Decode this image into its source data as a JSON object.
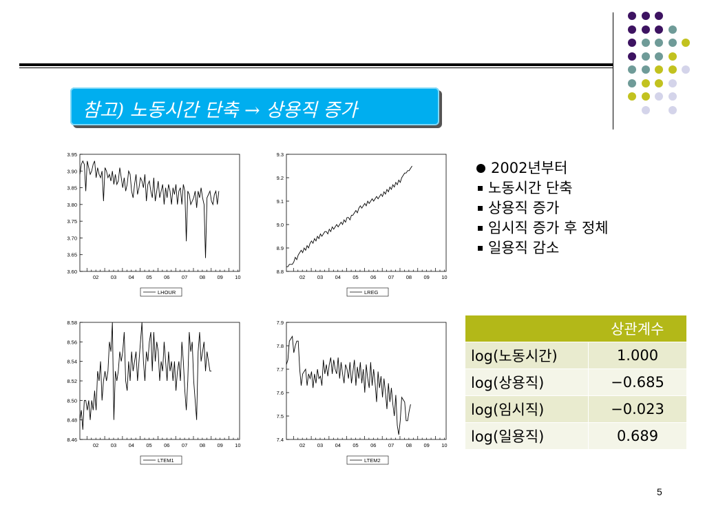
{
  "slide": {
    "title": "참고) 노동시간 단축 → 상용직 증가",
    "page_number": "5",
    "decoration_colors": {
      "purple": "#3d1361",
      "teal": "#6f9b98",
      "yellow": "#c2c21f",
      "lavender": "#d4d4ea"
    }
  },
  "bullets": [
    {
      "marker": "circle",
      "text": "2002년부터"
    },
    {
      "marker": "square",
      "text": "노동시간 단축"
    },
    {
      "marker": "square",
      "text": "상용직 증가"
    },
    {
      "marker": "square",
      "text": "임시직 증가 후 정체"
    },
    {
      "marker": "square",
      "text": "일용직 감소"
    }
  ],
  "table": {
    "header": [
      "",
      "상관계수"
    ],
    "rows": [
      [
        "log(노동시간)",
        "1.000"
      ],
      [
        "log(상용직)",
        "−0.685"
      ],
      [
        "log(임시직)",
        "−0.023"
      ],
      [
        "log(일용직)",
        "0.689"
      ]
    ]
  },
  "chart_data": [
    {
      "type": "line",
      "legend": "LHOUR",
      "x_ticks": [
        "02",
        "03",
        "04",
        "05",
        "06",
        "07",
        "08",
        "09",
        "10"
      ],
      "xlim": [
        2001.6,
        2010.6
      ],
      "ylim": [
        3.6,
        3.95
      ],
      "y_ticks": [
        "3.95",
        "3.90",
        "3.85",
        "3.80",
        "3.75",
        "3.70",
        "3.65",
        "3.60"
      ],
      "x_start": 2001.6,
      "x_step": 0.0833,
      "values": [
        3.89,
        3.92,
        3.93,
        3.92,
        3.84,
        3.93,
        3.91,
        3.89,
        3.9,
        3.92,
        3.93,
        3.88,
        3.91,
        3.89,
        3.88,
        3.9,
        3.81,
        3.91,
        3.9,
        3.88,
        3.89,
        3.87,
        3.9,
        3.86,
        3.89,
        3.86,
        3.87,
        3.91,
        3.88,
        3.85,
        3.88,
        3.84,
        3.86,
        3.9,
        3.89,
        3.84,
        3.82,
        3.86,
        3.89,
        3.83,
        3.85,
        3.88,
        3.87,
        3.85,
        3.89,
        3.81,
        3.86,
        3.87,
        3.84,
        3.82,
        3.88,
        3.81,
        3.84,
        3.87,
        3.82,
        3.84,
        3.86,
        3.8,
        3.85,
        3.82,
        3.86,
        3.84,
        3.8,
        3.85,
        3.83,
        3.86,
        3.8,
        3.84,
        3.85,
        3.8,
        3.86,
        3.84,
        3.69,
        3.84,
        3.83,
        3.8,
        3.81,
        3.82,
        3.84,
        3.79,
        3.84,
        3.82,
        3.85,
        3.82,
        3.8,
        3.64,
        3.82,
        3.83,
        3.84,
        3.81,
        3.8,
        3.83,
        3.84,
        3.8,
        3.84
      ]
    },
    {
      "type": "line",
      "legend": "LREG",
      "x_ticks": [
        "02",
        "03",
        "04",
        "05",
        "06",
        "07",
        "08",
        "09",
        "10"
      ],
      "xlim": [
        2001.6,
        2010.6
      ],
      "ylim": [
        8.8,
        9.3
      ],
      "y_ticks": [
        "9.3",
        "9.2",
        "9.1",
        "9.0",
        "8.9",
        "8.8"
      ],
      "x_start": 2001.6,
      "x_step": 0.0833,
      "values": [
        8.82,
        8.82,
        8.83,
        8.83,
        8.83,
        8.84,
        8.86,
        8.85,
        8.87,
        8.88,
        8.89,
        8.88,
        8.9,
        8.89,
        8.91,
        8.9,
        8.92,
        8.93,
        8.92,
        8.94,
        8.93,
        8.95,
        8.94,
        8.96,
        8.95,
        8.96,
        8.97,
        8.97,
        8.96,
        8.98,
        8.97,
        8.99,
        8.98,
        8.99,
        9.0,
        8.99,
        9.0,
        9.01,
        9.0,
        9.02,
        9.01,
        9.03,
        9.03,
        9.02,
        9.04,
        9.04,
        9.05,
        9.06,
        9.05,
        9.07,
        9.08,
        9.07,
        9.08,
        9.09,
        9.08,
        9.1,
        9.09,
        9.1,
        9.11,
        9.1,
        9.11,
        9.12,
        9.11,
        9.12,
        9.13,
        9.12,
        9.14,
        9.13,
        9.15,
        9.14,
        9.16,
        9.15,
        9.17,
        9.16,
        9.18,
        9.17,
        9.19,
        9.18,
        9.2,
        9.21,
        9.22,
        9.22,
        9.23,
        9.23,
        9.24,
        9.25
      ]
    },
    {
      "type": "line",
      "legend": "LTEM1",
      "x_ticks": [
        "02",
        "03",
        "04",
        "05",
        "06",
        "07",
        "08",
        "09",
        "10"
      ],
      "xlim": [
        2001.6,
        2010.6
      ],
      "ylim": [
        8.46,
        8.58
      ],
      "y_ticks": [
        "8.58",
        "8.56",
        "8.54",
        "8.52",
        "8.50",
        "8.48",
        "8.46"
      ],
      "x_start": 2001.6,
      "x_step": 0.0833,
      "values": [
        8.48,
        8.49,
        8.47,
        8.5,
        8.5,
        8.49,
        8.5,
        8.48,
        8.5,
        8.49,
        8.51,
        8.49,
        8.53,
        8.52,
        8.54,
        8.5,
        8.52,
        8.53,
        8.52,
        8.53,
        8.56,
        8.55,
        8.58,
        8.48,
        8.53,
        8.52,
        8.53,
        8.55,
        8.54,
        8.55,
        8.57,
        8.52,
        8.51,
        8.54,
        8.52,
        8.55,
        8.53,
        8.54,
        8.55,
        8.52,
        8.54,
        8.56,
        8.58,
        8.54,
        8.52,
        8.55,
        8.54,
        8.56,
        8.57,
        8.53,
        8.57,
        8.54,
        8.56,
        8.55,
        8.52,
        8.54,
        8.53,
        8.56,
        8.54,
        8.52,
        8.55,
        8.53,
        8.54,
        8.52,
        8.54,
        8.51,
        8.53,
        8.54,
        8.52,
        8.56,
        8.54,
        8.51,
        8.49,
        8.52,
        8.57,
        8.55,
        8.56,
        8.52,
        8.5,
        8.48,
        8.55,
        8.57,
        8.54,
        8.55,
        8.56,
        8.53,
        8.55,
        8.54,
        8.53,
        8.53
      ]
    },
    {
      "type": "line",
      "legend": "LTEM2",
      "x_ticks": [
        "02",
        "03",
        "04",
        "05",
        "06",
        "07",
        "08",
        "09",
        "10"
      ],
      "xlim": [
        2001.6,
        2010.6
      ],
      "ylim": [
        7.4,
        7.9
      ],
      "y_ticks": [
        "7.9",
        "7.8",
        "7.7",
        "7.6",
        "7.5",
        "7.4"
      ],
      "x_start": 2001.6,
      "x_step": 0.0833,
      "values": [
        7.72,
        7.74,
        7.82,
        7.83,
        7.84,
        7.77,
        7.8,
        7.82,
        7.82,
        7.7,
        7.63,
        7.68,
        7.69,
        7.7,
        7.63,
        7.68,
        7.66,
        7.69,
        7.62,
        7.68,
        7.64,
        7.7,
        7.66,
        7.67,
        7.63,
        7.74,
        7.68,
        7.72,
        7.67,
        7.72,
        7.75,
        7.68,
        7.74,
        7.7,
        7.68,
        7.75,
        7.66,
        7.73,
        7.68,
        7.64,
        7.72,
        7.7,
        7.66,
        7.73,
        7.64,
        7.69,
        7.74,
        7.63,
        7.71,
        7.66,
        7.73,
        7.64,
        7.7,
        7.6,
        7.72,
        7.66,
        7.62,
        7.73,
        7.63,
        7.7,
        7.64,
        7.56,
        7.69,
        7.62,
        7.67,
        7.58,
        7.66,
        7.6,
        7.53,
        7.64,
        7.56,
        7.62,
        7.55,
        7.5,
        7.59,
        7.46,
        7.42,
        7.48,
        7.58,
        7.57,
        7.56,
        7.48,
        7.48,
        7.52,
        7.55
      ]
    }
  ]
}
